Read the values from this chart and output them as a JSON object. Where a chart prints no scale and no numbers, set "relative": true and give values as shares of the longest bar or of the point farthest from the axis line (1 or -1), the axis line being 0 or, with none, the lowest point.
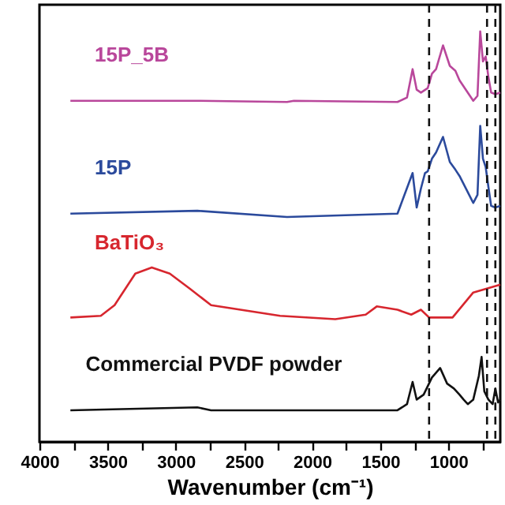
{
  "chart_data": {
    "type": "line",
    "relative": true,
    "xlabel": "Wavenumber (cm⁻¹)",
    "xlim": [
      4000,
      620
    ],
    "xticks": [
      4000,
      {
        "value": 3750,
        "label": null
      },
      3500,
      {
        "value": 3250,
        "label": null
      },
      3000,
      {
        "value": 2750,
        "label": null
      },
      2500,
      {
        "value": 2250,
        "label": null
      },
      2000,
      {
        "value": 1750,
        "label": null
      },
      1500,
      {
        "value": 1250,
        "label": null
      },
      1000,
      {
        "value": 750,
        "label": null
      }
    ],
    "grid": false,
    "line_style": "solid",
    "marker": "none",
    "series": [
      {
        "name": "15P_5B",
        "color": "#b9479b",
        "x": [
          3773,
          2842,
          2184,
          2134,
          1374,
          1304,
          1263,
          1233,
          1202,
          1152,
          1121,
          1091,
          1040,
          990,
          949,
          919,
          818,
          787,
          767,
          747,
          727,
          707,
          687,
          656,
          620
        ],
        "values": [
          0.831,
          0.831,
          0.828,
          0.831,
          0.828,
          0.839,
          0.908,
          0.858,
          0.851,
          0.862,
          0.897,
          0.908,
          0.966,
          0.916,
          0.904,
          0.881,
          0.831,
          0.843,
          1.0,
          0.927,
          0.939,
          0.889,
          0.851,
          0.847,
          0.851
        ]
      },
      {
        "name": "15P",
        "color": "#2b4a9c",
        "x": [
          3773,
          2842,
          2184,
          1374,
          1263,
          1233,
          1202,
          1172,
          1152,
          1121,
          1091,
          1040,
          990,
          949,
          919,
          818,
          787,
          767,
          747,
          727,
          707,
          687,
          656,
          620
        ],
        "values": [
          0.556,
          0.563,
          0.548,
          0.556,
          0.655,
          0.571,
          0.617,
          0.655,
          0.659,
          0.69,
          0.705,
          0.743,
          0.682,
          0.663,
          0.648,
          0.582,
          0.602,
          0.77,
          0.69,
          0.67,
          0.621,
          0.575,
          0.571,
          0.575
        ]
      },
      {
        "name": "BaTiO₃",
        "color": "#d7262e",
        "x": [
          3773,
          3550,
          3449,
          3297,
          3176,
          3044,
          2892,
          2741,
          2235,
          1830,
          1607,
          1526,
          1374,
          1273,
          1202,
          1142,
          970,
          818,
          620
        ],
        "values": [
          0.303,
          0.307,
          0.333,
          0.41,
          0.425,
          0.41,
          0.372,
          0.333,
          0.307,
          0.299,
          0.31,
          0.33,
          0.322,
          0.31,
          0.322,
          0.303,
          0.303,
          0.364,
          0.383
        ]
      },
      {
        "name": "Commercial PVDF powder",
        "color": "#111111",
        "x": [
          3773,
          2842,
          2741,
          1374,
          1304,
          1263,
          1233,
          1182,
          1121,
          1061,
          1010,
          960,
          919,
          889,
          858,
          818,
          777,
          757,
          737,
          707,
          676,
          656,
          636,
          620
        ],
        "values": [
          0.077,
          0.084,
          0.077,
          0.077,
          0.092,
          0.146,
          0.103,
          0.115,
          0.157,
          0.18,
          0.142,
          0.13,
          0.115,
          0.103,
          0.092,
          0.103,
          0.161,
          0.207,
          0.123,
          0.103,
          0.092,
          0.13,
          0.096,
          0.103
        ]
      }
    ],
    "ref_lines": [
      {
        "axis": "x",
        "value": 1142,
        "color": "#111111",
        "line_style": "dashed"
      },
      {
        "axis": "x",
        "value": 717,
        "color": "#111111",
        "line_style": "dashed"
      },
      {
        "axis": "x",
        "value": 656,
        "color": "#111111",
        "line_style": "dashed"
      }
    ]
  }
}
